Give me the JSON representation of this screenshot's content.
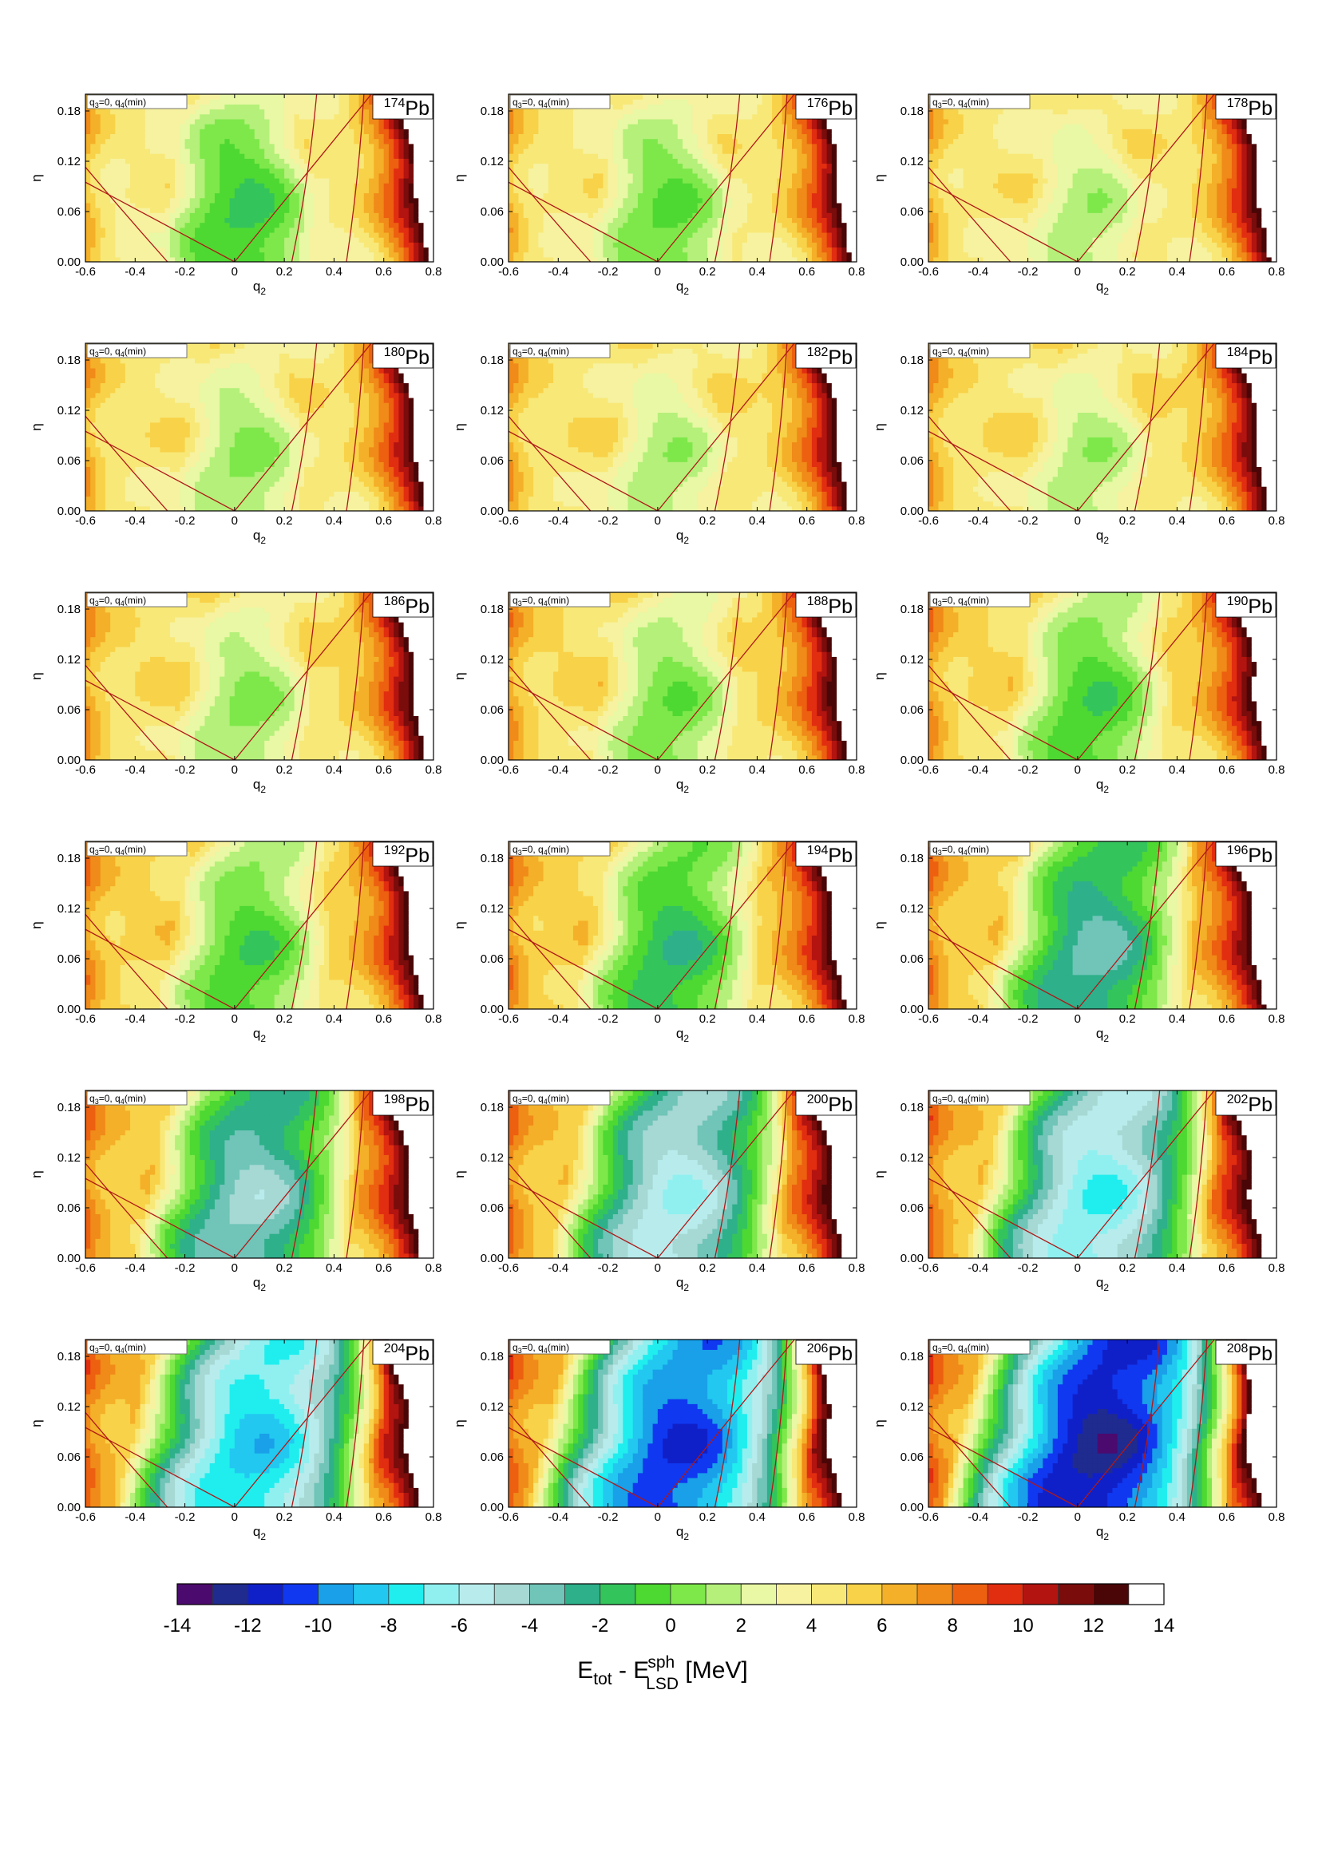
{
  "chart_data": {
    "type": "heatmap",
    "panel_annotation": {
      "q3": "q",
      "q3_sub": "3",
      "q3_rest": "=0, q",
      "q4_sub": "4",
      "q4_rest": "(min)"
    },
    "xlabel": {
      "main": "q",
      "sub": "2"
    },
    "ylabel": "η",
    "xlim": [
      -0.6,
      0.8
    ],
    "ylim": [
      0.0,
      0.2
    ],
    "x_ticks": [
      "-0.6",
      "-0.4",
      "-0.2",
      "0",
      "0.2",
      "0.4",
      "0.6",
      "0.8"
    ],
    "y_ticks": [
      "0.00",
      "0.06",
      "0.12",
      "0.18"
    ],
    "x_tick_values": [
      -0.6,
      -0.4,
      -0.2,
      0,
      0.2,
      0.4,
      0.6,
      0.8
    ],
    "y_tick_values": [
      0.0,
      0.06,
      0.12,
      0.18
    ],
    "panels": [
      {
        "mass": "174",
        "element": "Pb",
        "min_energy": -1.5
      },
      {
        "mass": "176",
        "element": "Pb",
        "min_energy": -0.5
      },
      {
        "mass": "178",
        "element": "Pb",
        "min_energy": 1.0
      },
      {
        "mass": "180",
        "element": "Pb",
        "min_energy": 0.5
      },
      {
        "mass": "182",
        "element": "Pb",
        "min_energy": 1.0
      },
      {
        "mass": "184",
        "element": "Pb",
        "min_energy": 1.0
      },
      {
        "mass": "186",
        "element": "Pb",
        "min_energy": 0.5
      },
      {
        "mass": "188",
        "element": "Pb",
        "min_energy": 0.0
      },
      {
        "mass": "190",
        "element": "Pb",
        "min_energy": -1.0
      },
      {
        "mass": "192",
        "element": "Pb",
        "min_energy": -1.0
      },
      {
        "mass": "194",
        "element": "Pb",
        "min_energy": -2.0
      },
      {
        "mass": "196",
        "element": "Pb",
        "min_energy": -3.5
      },
      {
        "mass": "198",
        "element": "Pb",
        "min_energy": -4.5
      },
      {
        "mass": "200",
        "element": "Pb",
        "min_energy": -6.0
      },
      {
        "mass": "202",
        "element": "Pb",
        "min_energy": -7.0
      },
      {
        "mass": "204",
        "element": "Pb",
        "min_energy": -8.5
      },
      {
        "mass": "206",
        "element": "Pb",
        "min_energy": -11.0
      },
      {
        "mass": "208",
        "element": "Pb",
        "min_energy": -12.5
      }
    ],
    "colorbar": {
      "min": -14,
      "max": 14,
      "step": 1,
      "ticks": [
        "-14",
        "-12",
        "-10",
        "-8",
        "-6",
        "-4",
        "-2",
        "0",
        "2",
        "4",
        "6",
        "8",
        "10",
        "12",
        "14"
      ],
      "colors": [
        "#4b0a6e",
        "#1f2b8f",
        "#1020c8",
        "#1038f0",
        "#19a0e8",
        "#22c8f0",
        "#20eeee",
        "#90f0f0",
        "#b8ecec",
        "#a6d8d4",
        "#70c4b8",
        "#2eb08a",
        "#34c45c",
        "#4ed832",
        "#7ee84a",
        "#b4f07a",
        "#e8f8a4",
        "#f6f2a0",
        "#f8e878",
        "#f8d248",
        "#f4b028",
        "#f08a18",
        "#ec6010",
        "#e22e10",
        "#b41410",
        "#7a0c0c",
        "#4a0606",
        "#ffffff"
      ]
    },
    "colorbar_label": {
      "main": "E",
      "sub1": "tot",
      "mid": " - E",
      "sup": "sph",
      "sub2": "LSD",
      "unit": "  [MeV]"
    }
  }
}
